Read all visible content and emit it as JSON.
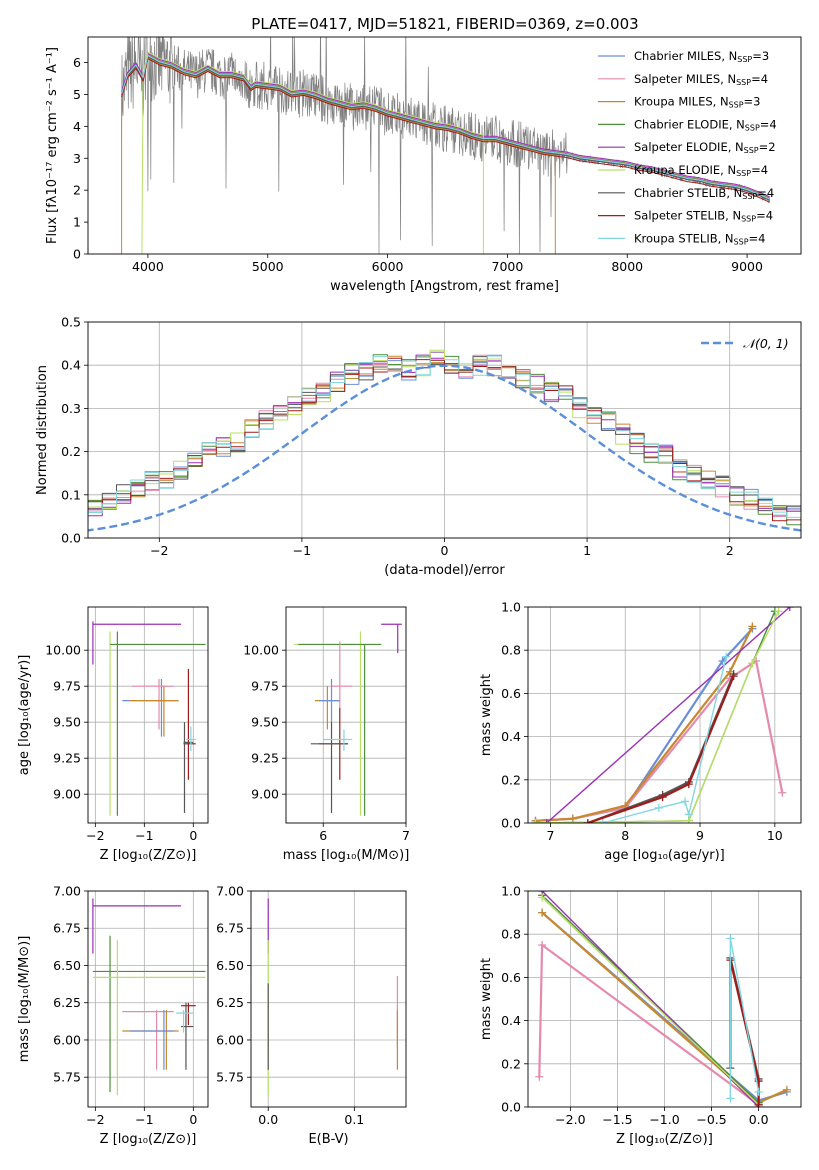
{
  "figure_title": "PLATE=0417, MJD=51821, FIBERID=0369, z=0.003",
  "colors": {
    "Chabrier MILES": "#6b8fd6",
    "Salpeter MILES": "#e68aad",
    "Kroupa MILES": "#c8882e",
    "Chabrier ELODIE": "#4f8f3c",
    "Salpeter ELODIE": "#9b2fb8",
    "Kroupa ELODIE": "#b9e065",
    "Chabrier STELIB": "#555555",
    "Salpeter STELIB": "#a01c1c",
    "Kroupa STELIB": "#82d6e0",
    "data": "#808080",
    "normal": "#5b8fd9"
  },
  "chart_data": [
    {
      "id": "spectrum",
      "type": "line",
      "title": "PLATE=0417, MJD=51821, FIBERID=0369, z=0.003",
      "xlabel": "wavelength [Angstrom, rest frame]",
      "ylabel": "Flux [fλ10⁻¹⁷ erg cm⁻² s⁻¹ A⁻¹]",
      "xlim": [
        3500,
        9450
      ],
      "ylim": [
        0,
        6.8
      ],
      "xticks": [
        4000,
        5000,
        6000,
        7000,
        8000,
        9000
      ],
      "yticks": [
        0,
        1,
        2,
        3,
        4,
        5,
        6
      ],
      "legend_position": "upper-right",
      "legend": [
        {
          "name": "Chabrier MILES",
          "nssp": "3"
        },
        {
          "name": "Salpeter MILES",
          "nssp": "4"
        },
        {
          "name": "Kroupa MILES",
          "nssp": "3"
        },
        {
          "name": "Chabrier ELODIE",
          "nssp": "4"
        },
        {
          "name": "Salpeter ELODIE",
          "nssp": "2"
        },
        {
          "name": "Kroupa ELODIE",
          "nssp": "4"
        },
        {
          "name": "Chabrier STELIB",
          "nssp": "4"
        },
        {
          "name": "Salpeter STELIB",
          "nssp": "4"
        },
        {
          "name": "Kroupa STELIB",
          "nssp": "4"
        }
      ],
      "model_continuum": {
        "x": [
          3780,
          3830,
          3900,
          3960,
          4000,
          4100,
          4200,
          4300,
          4400,
          4500,
          4600,
          4700,
          4800,
          4860,
          4900,
          5000,
          5100,
          5200,
          5300,
          5400,
          5500,
          5600,
          5700,
          5800,
          5900,
          6000,
          6100,
          6200,
          6300,
          6400,
          6500,
          6600,
          6700,
          6800,
          6900,
          7000,
          7100,
          7200,
          7300,
          7400,
          7500,
          7600,
          7700,
          7800,
          7900,
          8000,
          8100,
          8200,
          8300,
          8400,
          8500,
          8600,
          8700,
          8800,
          8900,
          9000,
          9100,
          9190
        ],
        "y": [
          5.0,
          5.6,
          5.9,
          5.5,
          6.2,
          6.0,
          5.9,
          5.7,
          5.6,
          5.8,
          5.6,
          5.6,
          5.5,
          5.2,
          5.3,
          5.25,
          5.2,
          5.0,
          5.05,
          4.95,
          4.8,
          4.7,
          4.6,
          4.65,
          4.55,
          4.4,
          4.3,
          4.2,
          4.1,
          4.0,
          3.95,
          3.85,
          3.7,
          3.6,
          3.6,
          3.5,
          3.4,
          3.3,
          3.2,
          3.15,
          3.1,
          3.0,
          2.95,
          2.9,
          2.85,
          2.8,
          2.7,
          2.65,
          2.55,
          2.45,
          2.35,
          2.3,
          2.2,
          2.15,
          2.1,
          2.0,
          1.85,
          1.7
        ]
      },
      "truncated_models": [
        {
          "model": "Kroupa ELODIE",
          "start": 3950,
          "end": 6800
        },
        {
          "model": "Kroupa MILES",
          "start": 3780,
          "end": 7400
        }
      ]
    },
    {
      "id": "residual-distribution",
      "type": "line",
      "xlabel": "(data-model)/error",
      "ylabel": "Normed distribution",
      "xlim": [
        -2.5,
        2.5
      ],
      "ylim": [
        0,
        0.5
      ],
      "xticks": [
        -2,
        -1,
        0,
        1,
        2
      ],
      "yticks": [
        0.0,
        0.1,
        0.2,
        0.3,
        0.4,
        0.5
      ],
      "grid": true,
      "legend_position": "upper-right",
      "reference_curve": {
        "name": "𝒩(0, 1)",
        "mean": 0,
        "sigma": 1
      },
      "bin_width": 0.1,
      "histogram_mean": [
        0.02,
        0.02,
        0.025,
        0.03,
        0.035,
        0.04,
        0.045,
        0.055,
        0.07,
        0.09,
        0.1,
        0.11,
        0.13,
        0.14,
        0.16,
        0.18,
        0.2,
        0.21,
        0.22,
        0.25,
        0.27,
        0.29,
        0.31,
        0.33,
        0.34,
        0.36,
        0.38,
        0.39,
        0.4,
        0.4,
        0.39,
        0.4,
        0.41,
        0.4,
        0.39,
        0.4,
        0.4,
        0.38,
        0.37,
        0.36,
        0.34,
        0.33,
        0.3,
        0.29,
        0.27,
        0.24,
        0.22,
        0.2,
        0.19,
        0.16,
        0.15,
        0.13,
        0.12,
        0.1,
        0.09,
        0.07,
        0.06,
        0.05,
        0.045,
        0.04,
        0.035,
        0.03,
        0.03,
        0.025,
        0.025,
        0.02,
        0.02,
        0.02
      ]
    },
    {
      "id": "age-vs-metallicity",
      "type": "scatter",
      "xlabel": "Z [log₁₀(Z/Z⊙)]",
      "ylabel": "age  [log₁₀(age/yr)]",
      "xlim": [
        -2.15,
        0.3
      ],
      "ylim": [
        8.8,
        10.3
      ],
      "xticks": [
        -2,
        -1,
        0
      ],
      "yticks": [
        9.0,
        9.25,
        9.5,
        9.75,
        10.0
      ],
      "grid": true,
      "errorbars": [
        {
          "model": "Salpeter ELODIE",
          "x": -2.05,
          "y": 10.18,
          "xlo": -2.05,
          "xhi": -0.25,
          "ylo": 9.9,
          "yhi": 10.2
        },
        {
          "model": "Kroupa ELODIE",
          "x": -1.7,
          "y": 10.04,
          "xlo": -1.7,
          "xhi": 0.25,
          "ylo": 8.85,
          "yhi": 10.13
        },
        {
          "model": "Chabrier ELODIE",
          "x": -1.55,
          "y": 10.04,
          "xlo": -1.7,
          "xhi": 0.25,
          "ylo": 8.85,
          "yhi": 10.13
        },
        {
          "model": "Chabrier MILES",
          "x": -0.65,
          "y": 9.65,
          "xlo": -1.45,
          "xhi": -0.3,
          "ylo": 9.4,
          "yhi": 9.8
        },
        {
          "model": "Salpeter MILES",
          "x": -0.7,
          "y": 9.75,
          "xlo": -1.25,
          "xhi": -0.4,
          "ylo": 9.45,
          "yhi": 9.8
        },
        {
          "model": "Kroupa MILES",
          "x": -0.6,
          "y": 9.65,
          "xlo": -1.3,
          "xhi": -0.3,
          "ylo": 9.4,
          "yhi": 9.75
        },
        {
          "model": "Salpeter STELIB",
          "x": -0.1,
          "y": 9.35,
          "xlo": -0.2,
          "xhi": 0.05,
          "ylo": 9.1,
          "yhi": 9.87
        },
        {
          "model": "Chabrier STELIB",
          "x": -0.18,
          "y": 9.36,
          "xlo": -0.2,
          "xhi": 0.0,
          "ylo": 8.87,
          "yhi": 9.5
        },
        {
          "model": "Kroupa STELIB",
          "x": -0.05,
          "y": 9.38,
          "xlo": -0.15,
          "xhi": 0.05,
          "ylo": 9.3,
          "yhi": 9.47
        }
      ]
    },
    {
      "id": "age-vs-mass",
      "type": "scatter",
      "xlabel": "mass [log₁₀(M/M⊙)]",
      "xlim": [
        5.55,
        7.0
      ],
      "ylim": [
        8.8,
        10.3
      ],
      "xticks": [
        6,
        7
      ],
      "yticks": [
        9.0,
        9.25,
        9.5,
        9.75,
        10.0
      ],
      "grid": true,
      "errorbars": [
        {
          "model": "Salpeter ELODIE",
          "x": 6.9,
          "y": 10.18,
          "xlo": 6.7,
          "xhi": 6.95,
          "ylo": 9.98,
          "yhi": 10.18
        },
        {
          "model": "Kroupa ELODIE",
          "x": 6.45,
          "y": 10.04,
          "xlo": 5.65,
          "xhi": 6.7,
          "ylo": 8.85,
          "yhi": 10.13
        },
        {
          "model": "Chabrier ELODIE",
          "x": 6.5,
          "y": 10.04,
          "xlo": 5.7,
          "xhi": 6.7,
          "ylo": 8.85,
          "yhi": 10.04
        },
        {
          "model": "Salpeter MILES",
          "x": 6.2,
          "y": 9.75,
          "xlo": 6.1,
          "xhi": 6.35,
          "ylo": 9.6,
          "yhi": 10.06
        },
        {
          "model": "Kroupa MILES",
          "x": 6.05,
          "y": 9.65,
          "xlo": 5.9,
          "xhi": 6.2,
          "ylo": 9.45,
          "yhi": 9.75
        },
        {
          "model": "Chabrier MILES",
          "x": 6.1,
          "y": 9.65,
          "xlo": 5.95,
          "xhi": 6.2,
          "ylo": 9.5,
          "yhi": 9.8
        },
        {
          "model": "Salpeter STELIB",
          "x": 6.2,
          "y": 9.35,
          "xlo": 5.95,
          "xhi": 6.3,
          "ylo": 9.1,
          "yhi": 9.6
        },
        {
          "model": "Chabrier STELIB",
          "x": 6.1,
          "y": 9.35,
          "xlo": 5.85,
          "xhi": 6.3,
          "ylo": 8.87,
          "yhi": 9.5
        },
        {
          "model": "Kroupa STELIB",
          "x": 6.25,
          "y": 9.38,
          "xlo": 6.0,
          "xhi": 6.35,
          "ylo": 9.3,
          "yhi": 9.45
        }
      ]
    },
    {
      "id": "mass-weight-vs-age",
      "type": "line",
      "xlabel": "age  [log₁₀(age/yr)]",
      "ylabel": "mass weight",
      "xlim": [
        6.7,
        10.35
      ],
      "ylim": [
        0.0,
        1.0
      ],
      "xticks": [
        7,
        8,
        9,
        10
      ],
      "yticks": [
        0.0,
        0.2,
        0.4,
        0.6,
        0.8,
        1.0
      ],
      "grid": true,
      "series": [
        {
          "model": "Chabrier MILES",
          "x": [
            6.8,
            7.3,
            8.0,
            9.3,
            9.7
          ],
          "y": [
            0.01,
            0.02,
            0.07,
            0.75,
            0.9
          ]
        },
        {
          "model": "Salpeter MILES",
          "x": [
            6.8,
            7.3,
            8.0,
            9.4,
            9.75,
            10.1
          ],
          "y": [
            0.01,
            0.02,
            0.07,
            0.67,
            0.75,
            0.14
          ]
        },
        {
          "model": "Kroupa MILES",
          "x": [
            6.8,
            7.3,
            8.0,
            9.4,
            9.7
          ],
          "y": [
            0.01,
            0.02,
            0.08,
            0.7,
            0.91
          ]
        },
        {
          "model": "Chabrier ELODIE",
          "x": [
            6.8,
            8.85,
            9.7,
            10.0
          ],
          "y": [
            0.0,
            0.01,
            0.74,
            0.98
          ]
        },
        {
          "model": "Salpeter ELODIE",
          "x": [
            6.95,
            10.2
          ],
          "y": [
            0.0,
            1.0
          ]
        },
        {
          "model": "Kroupa ELODIE",
          "x": [
            6.8,
            8.85,
            9.7,
            10.05
          ],
          "y": [
            0.0,
            0.01,
            0.74,
            0.98
          ]
        },
        {
          "model": "Chabrier STELIB",
          "x": [
            7.5,
            8.5,
            8.85,
            9.45
          ],
          "y": [
            0.0,
            0.13,
            0.19,
            0.69
          ]
        },
        {
          "model": "Salpeter STELIB",
          "x": [
            7.5,
            8.5,
            8.85,
            9.45
          ],
          "y": [
            0.0,
            0.12,
            0.18,
            0.68
          ]
        },
        {
          "model": "Kroupa STELIB",
          "x": [
            7.7,
            8.45,
            8.8,
            8.85,
            9.35
          ],
          "y": [
            0.0,
            0.07,
            0.1,
            0.04,
            0.77
          ]
        }
      ]
    },
    {
      "id": "mass-vs-metallicity",
      "type": "scatter",
      "xlabel": "Z [log₁₀(Z/Z⊙)]",
      "ylabel": "mass [log₁₀(M/M⊙)]",
      "xlim": [
        -2.15,
        0.3
      ],
      "ylim": [
        5.55,
        7.0
      ],
      "xticks": [
        -2,
        -1,
        0
      ],
      "yticks": [
        5.75,
        6.0,
        6.25,
        6.5,
        6.75,
        7.0
      ],
      "grid": true,
      "errorbars": [
        {
          "model": "Salpeter ELODIE",
          "x": -2.05,
          "y": 6.9,
          "xlo": -2.05,
          "xhi": -0.25,
          "ylo": 6.58,
          "yhi": 6.95
        },
        {
          "model": "Chabrier ELODIE",
          "x": -1.7,
          "y": 6.46,
          "xlo": -2.05,
          "xhi": 0.25,
          "ylo": 5.65,
          "yhi": 6.7
        },
        {
          "model": "Kroupa ELODIE",
          "x": -1.55,
          "y": 6.42,
          "xlo": -2.05,
          "xhi": 0.25,
          "ylo": 5.63,
          "yhi": 6.67
        },
        {
          "model": "Salpeter MILES",
          "x": -0.75,
          "y": 6.19,
          "xlo": -1.45,
          "xhi": -0.4,
          "ylo": 5.8,
          "yhi": 6.2
        },
        {
          "model": "Kroupa MILES",
          "x": -0.55,
          "y": 6.06,
          "xlo": -1.45,
          "xhi": -0.3,
          "ylo": 5.8,
          "yhi": 6.2
        },
        {
          "model": "Chabrier MILES",
          "x": -0.6,
          "y": 6.06,
          "xlo": -1.3,
          "xhi": -0.4,
          "ylo": 5.8,
          "yhi": 6.2
        },
        {
          "model": "Salpeter STELIB",
          "x": -0.1,
          "y": 6.23,
          "xlo": -0.25,
          "xhi": 0.05,
          "ylo": 6.1,
          "yhi": 6.25
        },
        {
          "model": "Chabrier STELIB",
          "x": -0.15,
          "y": 6.09,
          "xlo": -0.25,
          "xhi": 0.0,
          "ylo": 5.8,
          "yhi": 6.25
        },
        {
          "model": "Kroupa STELIB",
          "x": -0.2,
          "y": 6.18,
          "xlo": -0.35,
          "xhi": 0.0,
          "ylo": 6.05,
          "yhi": 6.2
        }
      ]
    },
    {
      "id": "mass-vs-extinction",
      "type": "scatter",
      "xlabel": "E(B-V)",
      "xlim": [
        -0.02,
        0.16
      ],
      "ylim": [
        5.55,
        7.0
      ],
      "xticks": [
        0.0,
        0.1
      ],
      "yticks": [
        5.75,
        6.0,
        6.25,
        6.5,
        6.75,
        7.0
      ],
      "grid": true,
      "errorbars": [
        {
          "model": "Salpeter ELODIE",
          "x": 0.0,
          "y": 6.9,
          "xlo": 0.0,
          "xhi": 0.0,
          "ylo": 6.58,
          "yhi": 6.95
        },
        {
          "model": "Kroupa ELODIE",
          "x": 0.0,
          "y": 6.42,
          "xlo": 0.0,
          "xhi": 0.0,
          "ylo": 5.63,
          "yhi": 6.67
        },
        {
          "model": "Chabrier STELIB",
          "x": 0.0,
          "y": 6.09,
          "xlo": 0.0,
          "xhi": 0.0,
          "ylo": 5.8,
          "yhi": 6.38
        },
        {
          "model": "Salpeter MILES",
          "x": 0.15,
          "y": 6.19,
          "xlo": 0.15,
          "xhi": 0.15,
          "ylo": 5.95,
          "yhi": 6.43
        },
        {
          "model": "Kroupa MILES",
          "x": 0.15,
          "y": 6.06,
          "xlo": 0.15,
          "xhi": 0.15,
          "ylo": 5.8,
          "yhi": 6.2
        }
      ]
    },
    {
      "id": "mass-weight-vs-metallicity",
      "type": "line",
      "xlabel": "Z [log₁₀(Z/Z⊙)]",
      "ylabel": "mass weight",
      "xlim": [
        -2.45,
        0.45
      ],
      "ylim": [
        0.0,
        1.0
      ],
      "xticks": [
        -2.0,
        -1.5,
        -1.0,
        -0.5,
        0.0
      ],
      "yticks": [
        0.0,
        0.2,
        0.4,
        0.6,
        0.8,
        1.0
      ],
      "grid": true,
      "series": [
        {
          "model": "Chabrier MILES",
          "x": [
            -2.3,
            0.0,
            0.3
          ],
          "y": [
            0.9,
            0.03,
            0.07
          ]
        },
        {
          "model": "Salpeter MILES",
          "x": [
            -2.33,
            -2.3,
            0.0
          ],
          "y": [
            0.14,
            0.75,
            0.01
          ]
        },
        {
          "model": "Kroupa MILES",
          "x": [
            -2.3,
            0.0,
            0.3
          ],
          "y": [
            0.9,
            0.02,
            0.08
          ]
        },
        {
          "model": "Chabrier ELODIE",
          "x": [
            -2.3,
            0.0
          ],
          "y": [
            0.98,
            0.02
          ]
        },
        {
          "model": "Salpeter ELODIE",
          "x": [
            -2.3,
            0.0
          ],
          "y": [
            1.0,
            0.0
          ]
        },
        {
          "model": "Kroupa ELODIE",
          "x": [
            -2.3,
            0.0
          ],
          "y": [
            0.97,
            0.01
          ]
        },
        {
          "model": "Chabrier STELIB",
          "x": [
            -0.3,
            -0.3,
            0.0,
            0.0
          ],
          "y": [
            0.18,
            0.69,
            0.13,
            0.01
          ]
        },
        {
          "model": "Salpeter STELIB",
          "x": [
            -0.3,
            0.0,
            0.0
          ],
          "y": [
            0.68,
            0.12,
            0.01
          ]
        },
        {
          "model": "Kroupa STELIB",
          "x": [
            -0.3,
            -0.3,
            0.0
          ],
          "y": [
            0.04,
            0.78,
            0.07
          ]
        }
      ]
    }
  ]
}
